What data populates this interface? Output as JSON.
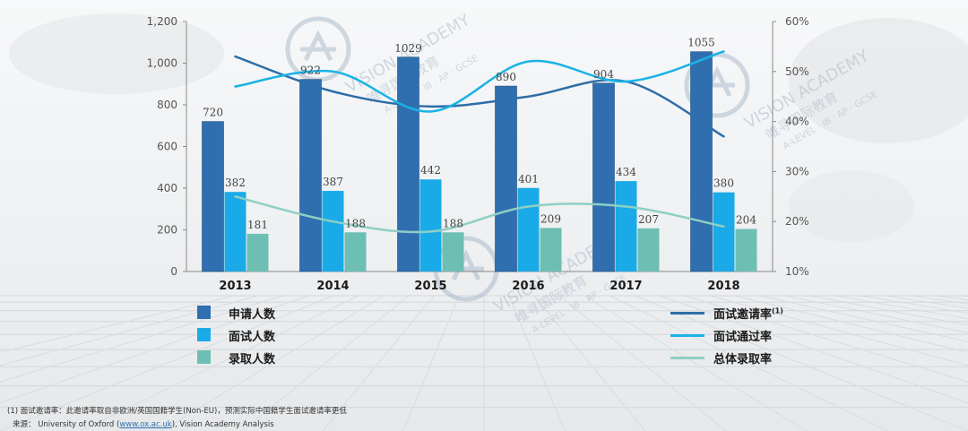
{
  "chart_data": {
    "type": "bar",
    "categories": [
      "2013",
      "2014",
      "2015",
      "2016",
      "2017",
      "2018"
    ],
    "series": [
      {
        "name": "申请人数",
        "axis": "left",
        "color": "#2f6fb0",
        "values": [
          720,
          922,
          1029,
          890,
          904,
          1055
        ]
      },
      {
        "name": "面试人数",
        "axis": "left",
        "color": "#1aaae8",
        "values": [
          382,
          387,
          442,
          401,
          434,
          380
        ]
      },
      {
        "name": "录取人数",
        "axis": "left",
        "color": "#6cbfb2",
        "values": [
          181,
          188,
          188,
          209,
          207,
          204
        ]
      }
    ],
    "line_series": [
      {
        "name": "面试邀请率",
        "sup": "(1)",
        "axis": "right",
        "color": "#2e6ea8",
        "values": [
          53,
          46,
          43,
          45,
          48,
          37
        ]
      },
      {
        "name": "面试通过率",
        "axis": "right",
        "color": "#1ab3e6",
        "values": [
          47,
          50,
          42,
          52,
          48,
          54
        ]
      },
      {
        "name": "总体录取率",
        "axis": "right",
        "color": "#8fcfc4",
        "values": [
          25,
          20,
          18,
          23,
          23,
          19
        ]
      }
    ],
    "y_left": {
      "min": 0,
      "max": 1200,
      "ticks": [
        "0",
        "200",
        "400",
        "600",
        "800",
        "1,000",
        "1,200"
      ]
    },
    "y_right": {
      "min": 10,
      "max": 60,
      "ticks": [
        "10%",
        "20%",
        "30%",
        "40%",
        "50%",
        "60%"
      ]
    },
    "grid": false
  },
  "footnote": {
    "line1": "(1) 面试邀请率：此邀请率取自非欧洲/英国国籍学生(Non-EU)，预测实际中国籍学生面试邀请率更低",
    "source_prefix": "来源：  University of Oxford (",
    "source_link": "www.ox.ac.uk",
    "source_suffix": "), Vision Academy Analysis"
  },
  "watermark": {
    "brand": "VISION ACADEMY",
    "cn": "唯寻国际教育",
    "sub": "A-LEVEL · IB · AP · GCSE"
  }
}
